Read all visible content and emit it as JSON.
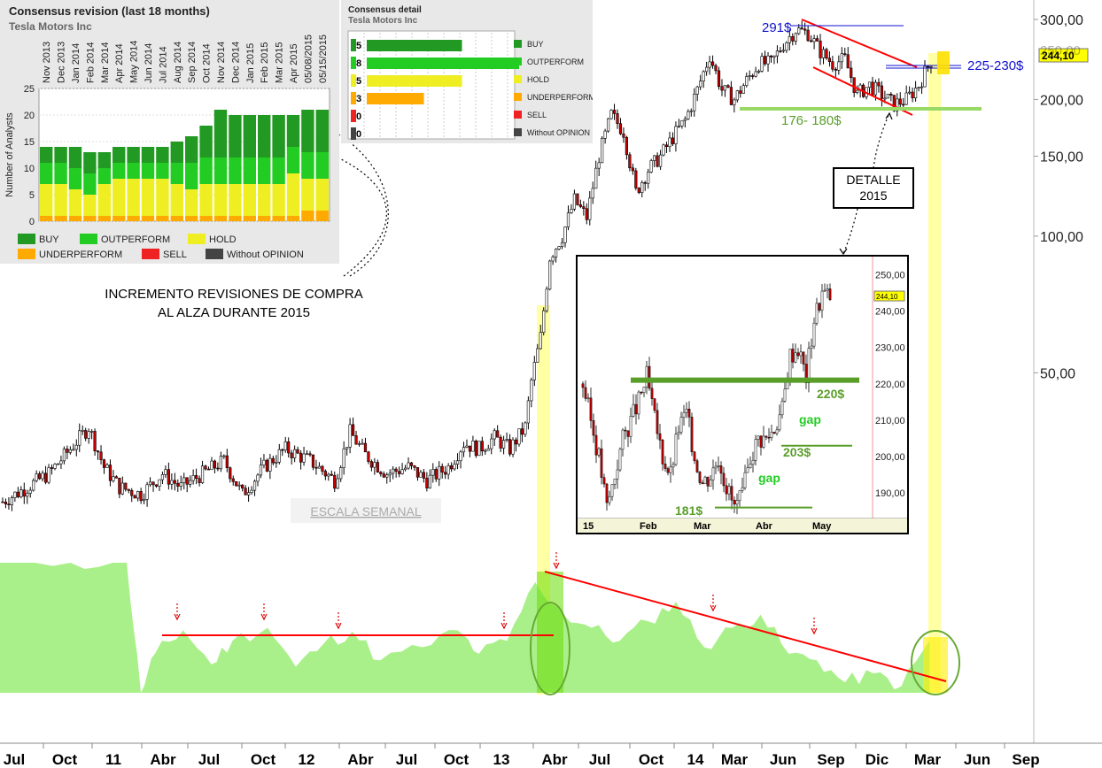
{
  "chart_data": [
    {
      "type": "candlestick",
      "instrument": "TSLA",
      "scale": "log",
      "yaxis_labels": [
        "300,00",
        "250,00",
        "200,00",
        "150,00",
        "100,00",
        "50,00"
      ],
      "yaxis_values": [
        300,
        250,
        200,
        150,
        100,
        50
      ],
      "ylim": [
        24,
        300
      ],
      "x_labels": [
        "Jul",
        "Oct",
        "11",
        "Abr",
        "Jul",
        "Oct",
        "12",
        "Abr",
        "Jul",
        "Oct",
        "13",
        "Abr",
        "Jul",
        "Oct",
        "14",
        "Mar",
        "Jun",
        "Sep",
        "Dic",
        "Mar",
        "Jun",
        "Sep"
      ],
      "price_path": [
        {
          "t": 0,
          "close": 26
        },
        {
          "t": 8,
          "close": 28
        },
        {
          "t": 15,
          "close": 30
        },
        {
          "t": 22,
          "close": 34
        },
        {
          "t": 28,
          "close": 38
        },
        {
          "t": 33,
          "close": 31
        },
        {
          "t": 38,
          "close": 28
        },
        {
          "t": 45,
          "close": 27
        },
        {
          "t": 52,
          "close": 30
        },
        {
          "t": 58,
          "close": 28
        },
        {
          "t": 65,
          "close": 30
        },
        {
          "t": 72,
          "close": 32
        },
        {
          "t": 78,
          "close": 27
        },
        {
          "t": 85,
          "close": 31
        },
        {
          "t": 92,
          "close": 34
        },
        {
          "t": 100,
          "close": 32
        },
        {
          "t": 108,
          "close": 29
        },
        {
          "t": 113,
          "close": 37
        },
        {
          "t": 118,
          "close": 33
        },
        {
          "t": 125,
          "close": 30
        },
        {
          "t": 132,
          "close": 31
        },
        {
          "t": 138,
          "close": 29
        },
        {
          "t": 145,
          "close": 31
        },
        {
          "t": 150,
          "close": 35
        },
        {
          "t": 155,
          "close": 34
        },
        {
          "t": 160,
          "close": 36
        },
        {
          "t": 165,
          "close": 34
        },
        {
          "t": 170,
          "close": 38
        },
        {
          "t": 172,
          "close": 48
        },
        {
          "t": 175,
          "close": 60
        },
        {
          "t": 178,
          "close": 90
        },
        {
          "t": 182,
          "close": 100
        },
        {
          "t": 186,
          "close": 120
        },
        {
          "t": 190,
          "close": 110
        },
        {
          "t": 194,
          "close": 150
        },
        {
          "t": 198,
          "close": 185
        },
        {
          "t": 202,
          "close": 170
        },
        {
          "t": 206,
          "close": 125
        },
        {
          "t": 210,
          "close": 140
        },
        {
          "t": 214,
          "close": 150
        },
        {
          "t": 218,
          "close": 165
        },
        {
          "t": 222,
          "close": 180
        },
        {
          "t": 226,
          "close": 210
        },
        {
          "t": 230,
          "close": 250
        },
        {
          "t": 234,
          "close": 210
        },
        {
          "t": 238,
          "close": 200
        },
        {
          "t": 242,
          "close": 220
        },
        {
          "t": 246,
          "close": 240
        },
        {
          "t": 250,
          "close": 240
        },
        {
          "t": 254,
          "close": 265
        },
        {
          "t": 258,
          "close": 285
        },
        {
          "t": 262,
          "close": 280
        },
        {
          "t": 266,
          "close": 255
        },
        {
          "t": 270,
          "close": 240
        },
        {
          "t": 274,
          "close": 245
        },
        {
          "t": 278,
          "close": 205
        },
        {
          "t": 282,
          "close": 215
        },
        {
          "t": 286,
          "close": 205
        },
        {
          "t": 290,
          "close": 195
        },
        {
          "t": 294,
          "close": 200
        },
        {
          "t": 298,
          "close": 215
        },
        {
          "t": 302,
          "close": 244
        }
      ],
      "annotations": {
        "p291": "291$",
        "p225": "225-230$",
        "p176": "176- 180$",
        "last_price": "244,10",
        "axis_top_partial": "250,00",
        "detalle_box": [
          "DETALLE",
          "2015"
        ],
        "weekly_scale": "ESCALA SEMANAL",
        "revisions_note": [
          "INCREMENTO REVISIONES DE COMPRA",
          "AL ALZA DURANTE 2015"
        ]
      },
      "colors": {
        "up": "#ffffff",
        "down": "#cc0000",
        "trend": "#ff0000",
        "support": "#99d966",
        "blue_level": "#1010d0",
        "highlight": "#ffff99"
      }
    },
    {
      "type": "bar",
      "stacked": true,
      "title": "Consensus revision (last 18 months)",
      "subtitle": "Tesla Motors Inc",
      "ylabel": "Number of Analysts",
      "ylim": [
        0,
        25
      ],
      "yticks": [
        0,
        5,
        10,
        15,
        20,
        25
      ],
      "categories": [
        "Nov 2013",
        "Dec 2013",
        "Jan 2014",
        "Feb 2014",
        "Mar 2014",
        "Apr 2014",
        "May 2014",
        "Jun 2014",
        "Jul 2014",
        "Aug 2014",
        "Sep 2014",
        "Oct 2014",
        "Nov 2014",
        "Dec 2014",
        "Jan 2015",
        "Feb 2015",
        "Mar 2015",
        "Apr 2015",
        "05/08/2015",
        "05/15/2015"
      ],
      "series": [
        {
          "name": "UNDERPERFORM",
          "values": [
            1,
            1,
            1,
            1,
            1,
            1,
            1,
            1,
            1,
            1,
            1,
            1,
            1,
            1,
            1,
            1,
            1,
            1,
            2,
            2
          ]
        },
        {
          "name": "HOLD",
          "values": [
            6,
            6,
            5,
            4,
            6,
            7,
            7,
            7,
            7,
            6,
            5,
            6,
            6,
            6,
            6,
            6,
            6,
            8,
            6,
            6
          ]
        },
        {
          "name": "OUTPERFORM",
          "values": [
            4,
            4,
            4,
            4,
            3,
            3,
            3,
            3,
            3,
            4,
            5,
            5,
            5,
            5,
            5,
            5,
            5,
            5,
            5,
            5
          ]
        },
        {
          "name": "BUY",
          "values": [
            3,
            3,
            4,
            4,
            3,
            3,
            3,
            3,
            3,
            4,
            5,
            6,
            9,
            8,
            8,
            8,
            8,
            6,
            8,
            8
          ]
        }
      ],
      "legend": [
        "BUY",
        "OUTPERFORM",
        "HOLD",
        "UNDERPERFORM",
        "SELL",
        "Without OPINION"
      ],
      "legend_colors": [
        "#229922",
        "#22cc22",
        "#eeee22",
        "#ffaa00",
        "#ee2222",
        "#444444"
      ]
    },
    {
      "type": "bar",
      "orientation": "horizontal",
      "title": "Consensus detail",
      "subtitle": "Tesla Motors Inc",
      "categories": [
        "BUY",
        "OUTPERFORM",
        "HOLD",
        "UNDERPERFORM",
        "SELL",
        "Without OPINION"
      ],
      "values": [
        5,
        8,
        5,
        3,
        0,
        0
      ],
      "value_labels": [
        "5",
        "8",
        "5",
        "3",
        "0",
        "0"
      ],
      "xlim": [
        0,
        10
      ],
      "colors": [
        "#229922",
        "#22cc22",
        "#eeee22",
        "#ffaa00",
        "#ee2222",
        "#444444"
      ]
    },
    {
      "type": "candlestick",
      "title": "DETALLE 2015",
      "yaxis_labels": [
        "250,00",
        "240,00",
        "230,00",
        "220,00",
        "210,00",
        "200,00",
        "190,00"
      ],
      "yaxis_values": [
        250,
        240,
        230,
        220,
        210,
        200,
        190
      ],
      "ylim": [
        183,
        253
      ],
      "x_labels": [
        "15",
        "Feb",
        "Mar",
        "Abr",
        "May"
      ],
      "price_path": [
        {
          "t": 0,
          "close": 220
        },
        {
          "t": 3,
          "close": 210
        },
        {
          "t": 6,
          "close": 200
        },
        {
          "t": 9,
          "close": 186
        },
        {
          "t": 12,
          "close": 195
        },
        {
          "t": 15,
          "close": 205
        },
        {
          "t": 18,
          "close": 210
        },
        {
          "t": 21,
          "close": 215
        },
        {
          "t": 24,
          "close": 222
        },
        {
          "t": 27,
          "close": 210
        },
        {
          "t": 30,
          "close": 200
        },
        {
          "t": 33,
          "close": 195
        },
        {
          "t": 36,
          "close": 208
        },
        {
          "t": 39,
          "close": 212
        },
        {
          "t": 42,
          "close": 200
        },
        {
          "t": 45,
          "close": 193
        },
        {
          "t": 48,
          "close": 195
        },
        {
          "t": 51,
          "close": 200
        },
        {
          "t": 54,
          "close": 192
        },
        {
          "t": 57,
          "close": 186
        },
        {
          "t": 60,
          "close": 189
        },
        {
          "t": 63,
          "close": 200
        },
        {
          "t": 66,
          "close": 205
        },
        {
          "t": 69,
          "close": 205
        },
        {
          "t": 72,
          "close": 208
        },
        {
          "t": 75,
          "close": 213
        },
        {
          "t": 78,
          "close": 228
        },
        {
          "t": 81,
          "close": 230
        },
        {
          "t": 84,
          "close": 222
        },
        {
          "t": 87,
          "close": 238
        },
        {
          "t": 90,
          "close": 245
        },
        {
          "t": 93,
          "close": 244
        }
      ],
      "annotations": {
        "l220": "220$",
        "l203": "203$",
        "l181": "181$",
        "gap1": "gap",
        "gap2": "gap",
        "last_price": "244,10"
      }
    },
    {
      "type": "area",
      "title": "",
      "series": [
        {
          "t": 0,
          "v": 100
        },
        {
          "t": 10,
          "v": 100
        },
        {
          "t": 18,
          "v": 100
        },
        {
          "t": 20,
          "v": 0
        },
        {
          "t": 22,
          "v": 30
        },
        {
          "t": 26,
          "v": 48
        },
        {
          "t": 30,
          "v": 22
        },
        {
          "t": 33,
          "v": 40
        },
        {
          "t": 38,
          "v": 50
        },
        {
          "t": 42,
          "v": 20
        },
        {
          "t": 46,
          "v": 38
        },
        {
          "t": 50,
          "v": 47
        },
        {
          "t": 54,
          "v": 25
        },
        {
          "t": 60,
          "v": 35
        },
        {
          "t": 65,
          "v": 48
        },
        {
          "t": 68,
          "v": 30
        },
        {
          "t": 72,
          "v": 40
        },
        {
          "t": 76,
          "v": 85
        },
        {
          "t": 80,
          "v": 60
        },
        {
          "t": 84,
          "v": 50
        },
        {
          "t": 88,
          "v": 40
        },
        {
          "t": 92,
          "v": 55
        },
        {
          "t": 96,
          "v": 70
        },
        {
          "t": 100,
          "v": 35
        },
        {
          "t": 104,
          "v": 50
        },
        {
          "t": 108,
          "v": 60
        },
        {
          "t": 112,
          "v": 30
        },
        {
          "t": 116,
          "v": 25
        },
        {
          "t": 120,
          "v": 8
        },
        {
          "t": 124,
          "v": 15
        },
        {
          "t": 128,
          "v": 5
        },
        {
          "t": 132,
          "v": 40
        }
      ]
    }
  ]
}
